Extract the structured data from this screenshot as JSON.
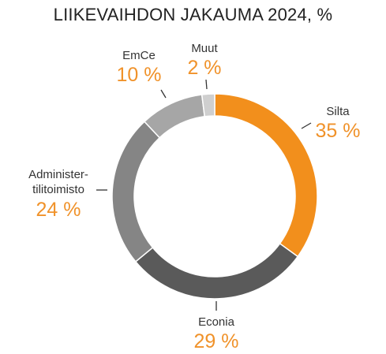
{
  "chart_data": {
    "type": "pie",
    "variant": "donut",
    "title": "LIIKEVAIHDON JAKAUMA 2024, %",
    "slices": [
      {
        "name": "Silta",
        "value": 35,
        "label": "35 %",
        "color": "#f28f1c"
      },
      {
        "name": "Econia",
        "value": 29,
        "label": "29 %",
        "color": "#5a5a5a"
      },
      {
        "name_lines": [
          "Administer-",
          "tilitoimisto"
        ],
        "value": 24,
        "label": "24 %",
        "color": "#858585"
      },
      {
        "name": "EmCe",
        "value": 10,
        "label": "10 %",
        "color": "#a6a6a6"
      },
      {
        "name": "Muut",
        "value": 2,
        "label": "2 %",
        "color": "#cfcfcf"
      }
    ],
    "value_label_color": "#f0922a"
  }
}
